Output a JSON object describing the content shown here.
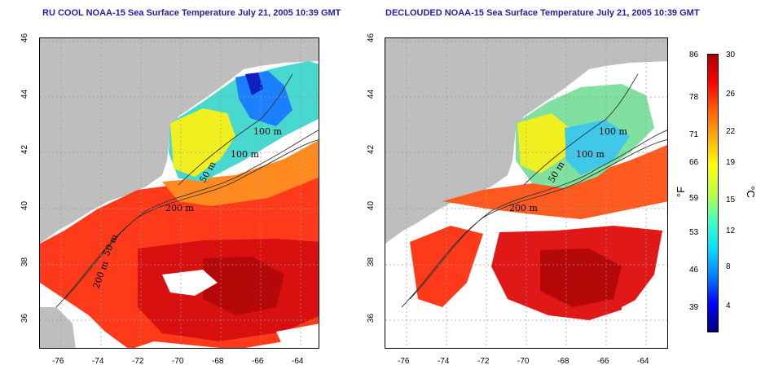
{
  "left_panel": {
    "title": "RU COOL NOAA-15 Sea Surface Temperature July 21, 2005 10:39 GMT"
  },
  "right_panel": {
    "title": "DECLOUDED NOAA-15 Sea Surface Temperature July 21, 2005 10:39 GMT"
  },
  "axes": {
    "x_ticks": [
      "-76",
      "-74",
      "-72",
      "-70",
      "-68",
      "-66",
      "-64"
    ],
    "y_ticks": [
      "46",
      "44",
      "42",
      "40",
      "38",
      "36"
    ]
  },
  "contours": {
    "labels": [
      "100 m",
      "100 m",
      "50 m",
      "200 m",
      "50 m",
      "200 m"
    ]
  },
  "colorbar": {
    "fahrenheit_ticks": [
      "86",
      "78",
      "71",
      "66",
      "59",
      "53",
      "46",
      "39"
    ],
    "celsius_ticks": [
      "30",
      "26",
      "22",
      "19",
      "15",
      "12",
      "8",
      "4"
    ],
    "f_unit": "°F",
    "c_unit": "°C",
    "colors": [
      "#000080",
      "#0000ff",
      "#0080ff",
      "#00e0ff",
      "#40ffc0",
      "#c0ff40",
      "#ffff00",
      "#ffb000",
      "#ff6000",
      "#ff0000",
      "#b00000"
    ]
  },
  "colors": {
    "land": "#bebebe",
    "cloud": "#ffffff",
    "grid": "#999999",
    "title_text": "#1f1fa8"
  }
}
